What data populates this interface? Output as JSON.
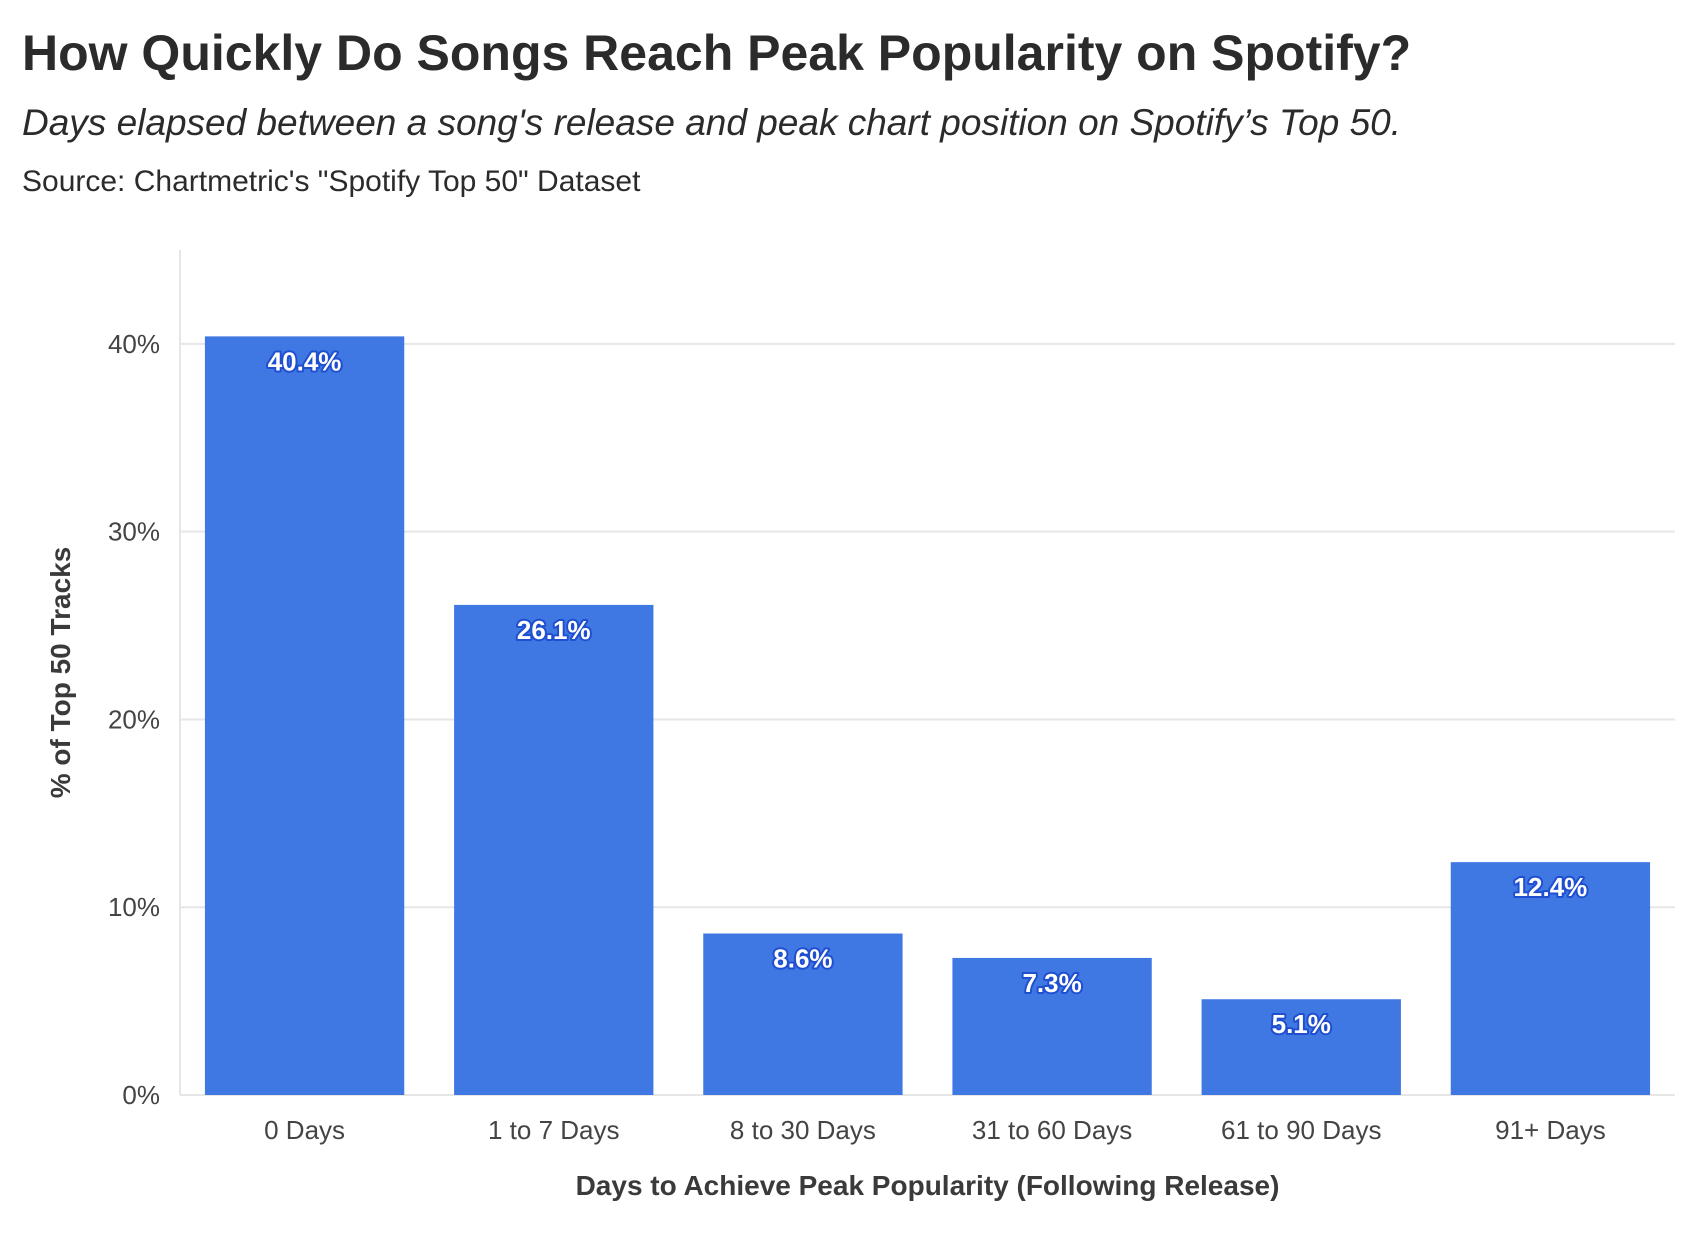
{
  "header": {
    "title": "How Quickly Do Songs Reach Peak Popularity on Spotify?",
    "subtitle": "Days elapsed between a song's release and peak chart position on Spotify’s Top 50.",
    "caption": "Source: Chartmetric's \"Spotify Top 50\" Dataset"
  },
  "chart_data": {
    "type": "bar",
    "categories": [
      "0 Days",
      "1 to 7 Days",
      "8 to 30 Days",
      "31 to 60 Days",
      "61 to 90 Days",
      "91+ Days"
    ],
    "values": [
      40.4,
      26.1,
      8.6,
      7.3,
      5.1,
      12.4
    ],
    "data_labels": [
      "40.4%",
      "26.1%",
      "8.6%",
      "7.3%",
      "5.1%",
      "12.4%"
    ],
    "xlabel": "Days to Achieve Peak Popularity (Following Release)",
    "ylabel": "% of Top 50 Tracks",
    "ylim": [
      0,
      45
    ],
    "yticks": [
      0,
      10,
      20,
      30,
      40
    ],
    "ytick_labels": [
      "0%",
      "10%",
      "20%",
      "30%",
      "40%"
    ],
    "grid": true,
    "legend": "none",
    "colors": {
      "bar": "#3f78e3",
      "label_outline": "#1f4fd0",
      "label_text": "#ffffff",
      "grid": "#e6e6e6"
    }
  }
}
